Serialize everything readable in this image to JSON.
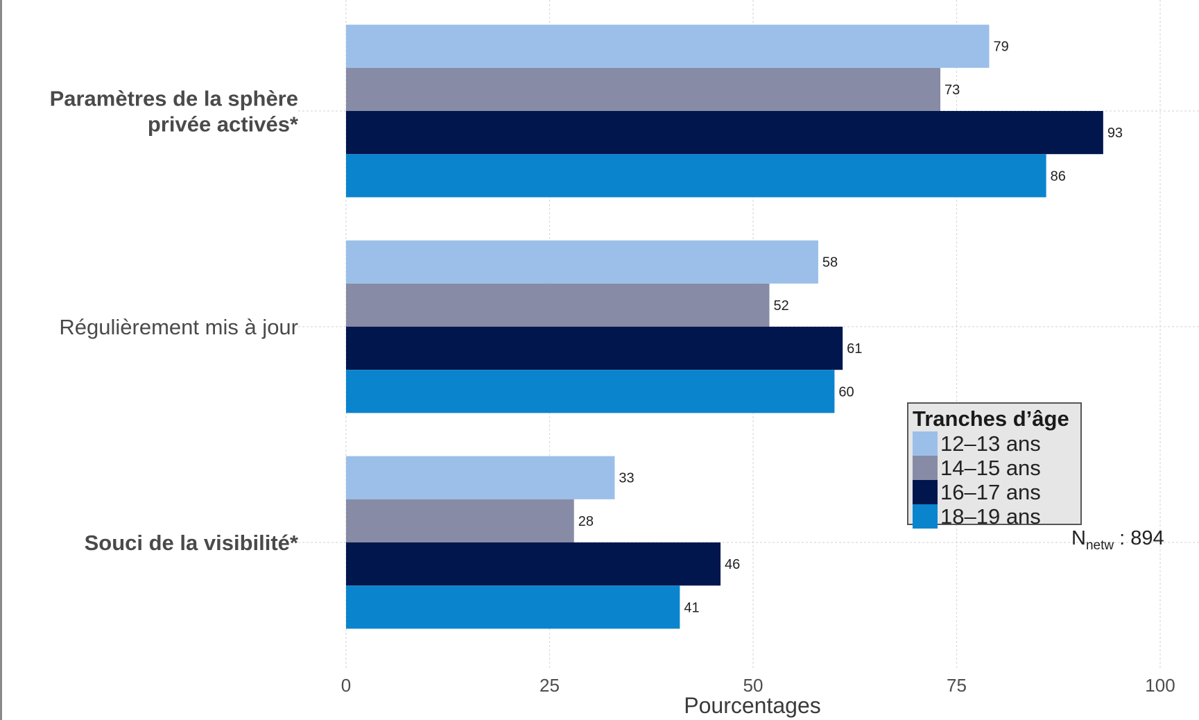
{
  "chart_data": {
    "type": "bar",
    "orientation": "horizontal",
    "categories": [
      "Paramètres de la sphère privée activés*",
      "Régulièrement mis à jour",
      "Souci de la visibilité*"
    ],
    "category_lines": [
      [
        "Paramètres de la sphère",
        "privée activés*"
      ],
      [
        "Régulièrement mis à jour"
      ],
      [
        "Souci de la visibilité*"
      ]
    ],
    "category_bold": [
      true,
      false,
      true
    ],
    "series": [
      {
        "name": "12–13 ans",
        "color": "#9bbfe8",
        "values": [
          79,
          58,
          33
        ]
      },
      {
        "name": "14–15 ans",
        "color": "#878ba5",
        "values": [
          73,
          52,
          28
        ]
      },
      {
        "name": "16–17 ans",
        "color": "#00164d",
        "values": [
          93,
          61,
          46
        ]
      },
      {
        "name": "18–19 ans",
        "color": "#0b84ce",
        "values": [
          86,
          60,
          41
        ]
      }
    ],
    "xlabel": "Pourcentages",
    "ylabel": "",
    "xlim": [
      0,
      100
    ],
    "xticks": [
      "0",
      "25",
      "50",
      "75",
      "100"
    ],
    "grid": true,
    "legend": {
      "title": "Tranches d’âge",
      "position": "bottom-right"
    },
    "note": {
      "prefix": "N",
      "subscript": "netw",
      "suffix": " : 894"
    }
  }
}
